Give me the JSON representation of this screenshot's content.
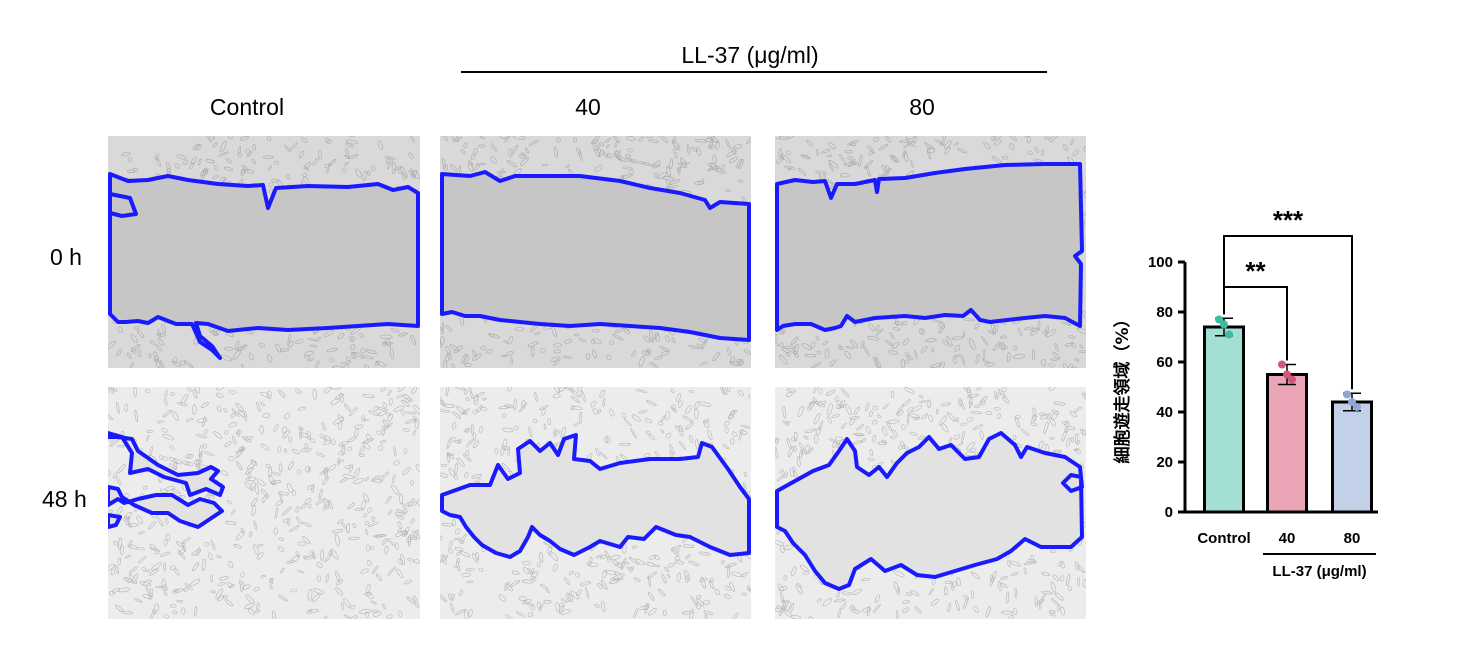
{
  "treatment_header": "LL-37 (μg/ml)",
  "columns": [
    "Control",
    "40",
    "80"
  ],
  "rows": [
    "0 h",
    "48 h"
  ],
  "colors": {
    "wound_outline": "#1a1aff",
    "cells_bg": "#d9d9d9",
    "wound_bg": "#c6c6c6",
    "cells_bg_48h": "#ececec",
    "wound_bg_48h": "#e2e2e2"
  },
  "chart_data": {
    "type": "bar",
    "ylabel": "細胞遊走領域（%）",
    "xlabel_group": "LL-37 (μg/ml)",
    "categories": [
      "Control",
      "40",
      "80"
    ],
    "values": [
      74,
      55,
      44
    ],
    "errors": [
      3.5,
      4,
      3.5
    ],
    "points": [
      [
        77,
        75,
        71
      ],
      [
        59,
        55,
        53
      ],
      [
        47,
        44,
        42
      ]
    ],
    "bar_colors": [
      "#a3dfd5",
      "#eaa5b7",
      "#c3d1e8"
    ],
    "point_colors": [
      "#3dbba4",
      "#d3577c",
      "#8fa8d3"
    ],
    "ylim": [
      0,
      100
    ],
    "yticks": [
      0,
      20,
      40,
      60,
      80,
      100
    ],
    "significance": [
      {
        "from": "Control",
        "to": "40",
        "label": "**"
      },
      {
        "from": "Control",
        "to": "80",
        "label": "***"
      }
    ]
  }
}
